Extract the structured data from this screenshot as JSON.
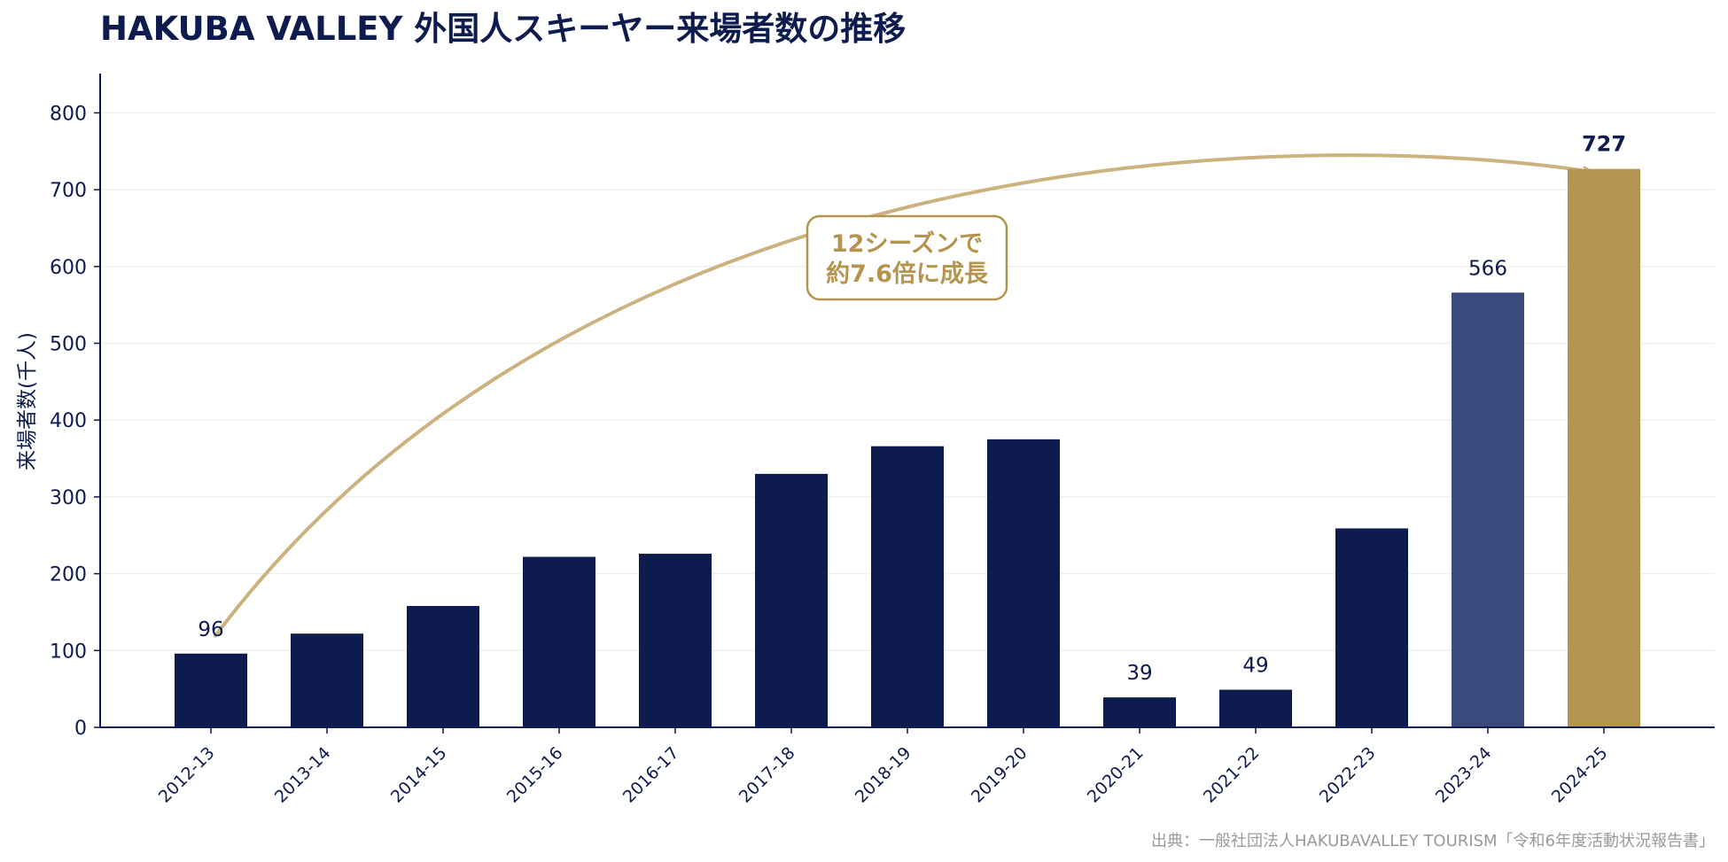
{
  "chart_data": {
    "type": "bar",
    "title": "HAKUBA VALLEY 外国人スキーヤー来場者数の推移",
    "xlabel": "",
    "ylabel": "来場者数(千人)",
    "ylim": [
      0,
      850
    ],
    "yticks": [
      0,
      100,
      200,
      300,
      400,
      500,
      600,
      700,
      800
    ],
    "grid": "horizontal",
    "categories": [
      "2012-13",
      "2013-14",
      "2014-15",
      "2015-16",
      "2016-17",
      "2017-18",
      "2018-19",
      "2019-20",
      "2020-21",
      "2021-22",
      "2022-23",
      "2023-24",
      "2024-25"
    ],
    "values": [
      96,
      122,
      158,
      222,
      226,
      330,
      366,
      375,
      39,
      49,
      259,
      566,
      727
    ],
    "data_labels": {
      "2012-13": "96",
      "2020-21": "39",
      "2021-22": "49",
      "2023-24": "566",
      "2024-25": "727"
    },
    "annotation": {
      "line1": "12シーズンで",
      "line2": "約7.6倍に成長",
      "from_category": "2012-13",
      "to_category": "2024-25"
    },
    "source": "出典：一般社団法人HAKUBAVALLEY TOURISM「令和6年度活動状況報告書」"
  },
  "colors": {
    "bar_default": "#0d1b4f",
    "bar_previous": "#3a4a7c",
    "bar_latest": "#b5944f",
    "arrow": "#cbb27f",
    "axis": "#0d1b4f",
    "grid": "#f0f0f0",
    "title": "#0d1b4f",
    "source": "#9a9a9a"
  }
}
